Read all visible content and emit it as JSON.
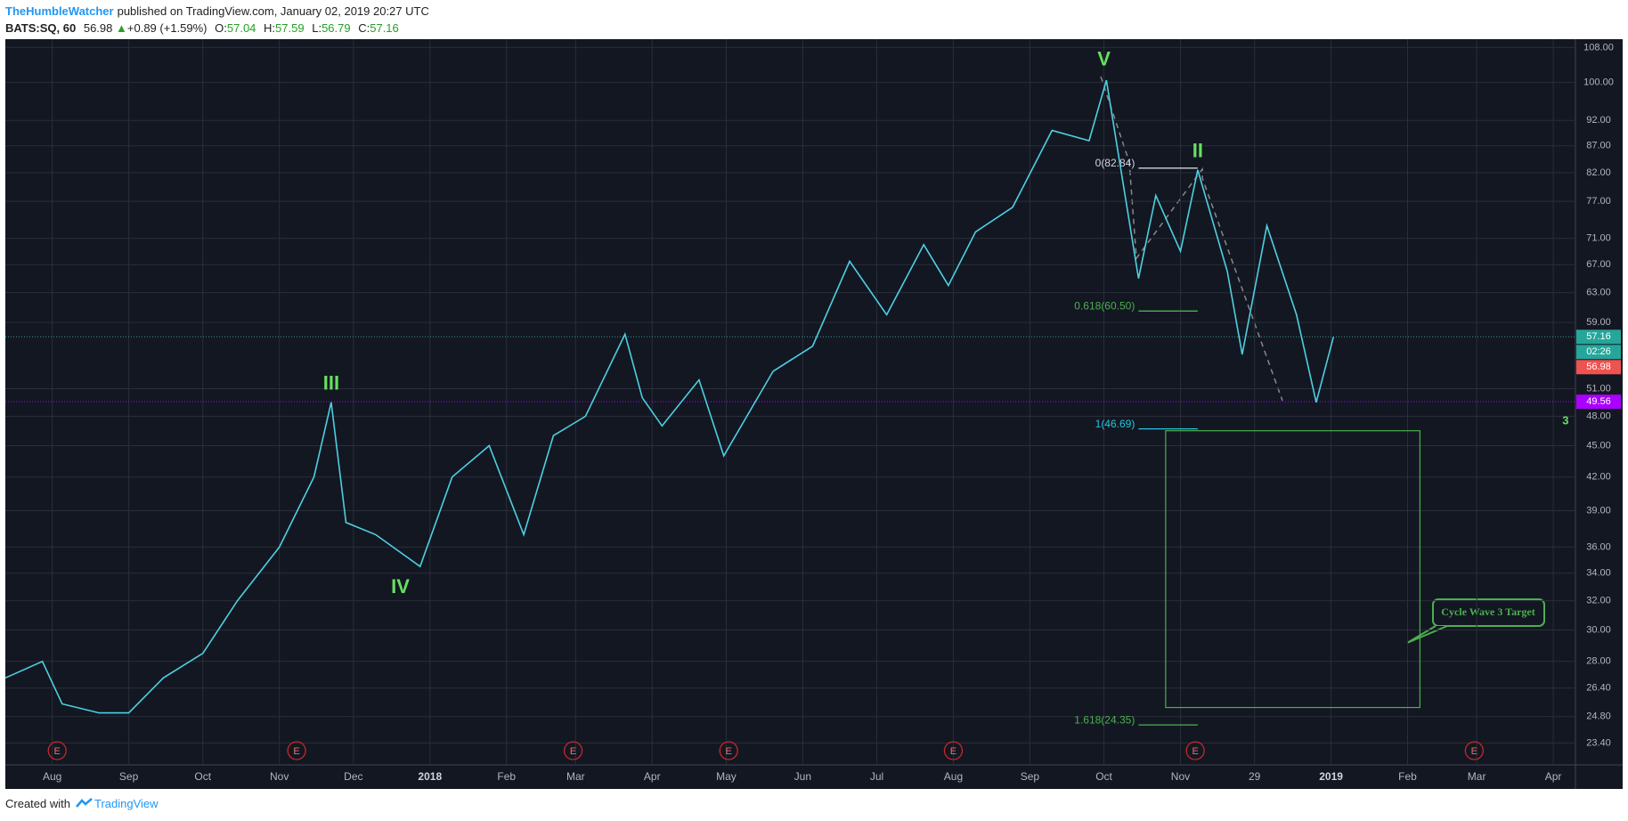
{
  "header": {
    "user": "TheHumbleWatcher",
    "published": "published on TradingView.com, January 02, 2019 20:27 UTC",
    "symbol": "BATS:SQ, 60",
    "last": 56.98,
    "change": "+0.89 (+1.59%)",
    "ohlc": [
      {
        "key": "O:",
        "value": 57.04
      },
      {
        "key": "H:",
        "value": 57.59
      },
      {
        "key": "L:",
        "value": 56.79
      },
      {
        "key": "C:",
        "value": 57.16
      }
    ]
  },
  "chart_data": {
    "type": "line",
    "log_scale": true,
    "grid": true,
    "color": "#4dd0e1",
    "x": [
      "2017-07-13",
      "2017-07-28",
      "2017-08-05",
      "2017-08-20",
      "2017-09-01",
      "2017-09-15",
      "2017-10-01",
      "2017-10-15",
      "2017-11-01",
      "2017-11-15",
      "2017-11-22",
      "2017-11-28",
      "2017-12-10",
      "2017-12-28",
      "2018-01-10",
      "2018-01-25",
      "2018-02-08",
      "2018-02-20",
      "2018-03-05",
      "2018-03-21",
      "2018-03-28",
      "2018-04-05",
      "2018-04-20",
      "2018-04-30",
      "2018-05-20",
      "2018-06-05",
      "2018-06-20",
      "2018-07-05",
      "2018-07-20",
      "2018-07-30",
      "2018-08-10",
      "2018-08-25",
      "2018-09-10",
      "2018-09-25",
      "2018-10-02",
      "2018-10-15",
      "2018-10-22",
      "2018-11-01",
      "2018-11-08",
      "2018-11-20",
      "2018-11-26",
      "2018-12-06",
      "2018-12-18",
      "2018-12-26",
      "2019-01-02"
    ],
    "values": [
      27,
      28,
      25.5,
      25,
      25,
      27,
      28.5,
      32,
      36,
      42,
      49.5,
      38,
      37,
      34.5,
      42,
      45,
      37,
      46,
      48,
      57.5,
      50,
      47,
      52,
      44,
      53,
      56,
      67.5,
      60,
      70,
      64,
      72,
      76,
      90,
      88,
      100.5,
      65,
      78,
      69,
      82.5,
      66,
      55,
      73,
      60,
      49.5,
      57.16
    ],
    "xlim": [
      "2017-07-13",
      "2019-04-10"
    ],
    "xticks": [
      {
        "value": "2017-08-01",
        "label": "Aug"
      },
      {
        "value": "2017-09-01",
        "label": "Sep"
      },
      {
        "value": "2017-10-01",
        "label": "Oct"
      },
      {
        "value": "2017-11-01",
        "label": "Nov"
      },
      {
        "value": "2017-12-01",
        "label": "Dec"
      },
      {
        "value": "2018-01-01",
        "label": "2018"
      },
      {
        "value": "2018-02-01",
        "label": "Feb"
      },
      {
        "value": "2018-03-01",
        "label": "Mar"
      },
      {
        "value": "2018-04-01",
        "label": "Apr"
      },
      {
        "value": "2018-05-01",
        "label": "May"
      },
      {
        "value": "2018-06-01",
        "label": "Jun"
      },
      {
        "value": "2018-07-01",
        "label": "Jul"
      },
      {
        "value": "2018-08-01",
        "label": "Aug"
      },
      {
        "value": "2018-09-01",
        "label": "Sep"
      },
      {
        "value": "2018-10-01",
        "label": "Oct"
      },
      {
        "value": "2018-11-01",
        "label": "Nov"
      },
      {
        "value": "2018-12-01",
        "label": "29"
      },
      {
        "value": "2019-01-01",
        "label": "2019"
      },
      {
        "value": "2019-02-01",
        "label": "Feb"
      },
      {
        "value": "2019-03-01",
        "label": "Mar"
      },
      {
        "value": "2019-04-01",
        "label": "Apr"
      }
    ],
    "ylim": [
      22.3,
      110
    ],
    "yticks": [
      {
        "value": 108,
        "label": "108.00"
      },
      {
        "value": 100,
        "label": "100.00"
      },
      {
        "value": 92,
        "label": "92.00"
      },
      {
        "value": 87,
        "label": "87.00"
      },
      {
        "value": 82,
        "label": "82.00"
      },
      {
        "value": 77,
        "label": "77.00"
      },
      {
        "value": 71,
        "label": "71.00"
      },
      {
        "value": 67,
        "label": "67.00"
      },
      {
        "value": 63,
        "label": "63.00"
      },
      {
        "value": 59,
        "label": "59.00"
      },
      {
        "value": 51,
        "label": "51.00"
      },
      {
        "value": 48,
        "label": "48.00"
      },
      {
        "value": 45,
        "label": "45.00"
      },
      {
        "value": 42,
        "label": "42.00"
      },
      {
        "value": 39,
        "label": "39.00"
      },
      {
        "value": 36,
        "label": "36.00"
      },
      {
        "value": 34,
        "label": "34.00"
      },
      {
        "value": 32,
        "label": "32.00"
      },
      {
        "value": 30,
        "label": "30.00"
      },
      {
        "value": 28,
        "label": "28.00"
      },
      {
        "value": 26.4,
        "label": "26.40"
      },
      {
        "value": 24.8,
        "label": "24.80"
      },
      {
        "value": 23.4,
        "label": "23.40"
      }
    ],
    "price_lines": [
      {
        "value": 57.16,
        "color": "#26a69a"
      },
      {
        "value": 49.56,
        "color": "#aa00ff"
      }
    ],
    "badges": [
      {
        "value": 57.16,
        "color": "#26a69a"
      },
      {
        "value": 56.98,
        "color": "#ef5350"
      },
      {
        "value": 49.56,
        "color": "#aa00ff"
      }
    ],
    "countdown": "02:26",
    "annotations": [
      {
        "text": "V",
        "x": "2018-10-01",
        "y": 105
      },
      {
        "text": "II",
        "x": "2018-11-08",
        "y": 85.8
      },
      {
        "text": "III",
        "x": "2017-11-22",
        "y": 51.5
      },
      {
        "text": "IV",
        "x": "2017-12-20",
        "y": 32.9
      },
      {
        "text": "3",
        "x": "2019-04-06",
        "y": 47.5
      }
    ],
    "fib_levels": [
      {
        "label": "0(82.84)",
        "value": 82.84,
        "color": "#d1d4dc",
        "x": [
          "2018-10-15",
          "2018-11-08"
        ]
      },
      {
        "label": "0.618(60.50)",
        "value": 60.5,
        "color": "#4caf50",
        "x": [
          "2018-10-15",
          "2018-11-08"
        ]
      },
      {
        "label": "1(46.69)",
        "value": 46.69,
        "color": "#26c6da",
        "x": [
          "2018-10-15",
          "2018-11-08"
        ]
      },
      {
        "label": "1.618(24.35)",
        "value": 24.35,
        "color": "#4caf50",
        "x": [
          "2018-10-15",
          "2018-11-08"
        ]
      }
    ],
    "target_box": {
      "x": [
        "2018-10-26",
        "2019-02-06"
      ],
      "y": [
        25.3,
        46.5
      ],
      "color": "#4caf50"
    },
    "callout": "Cycle Wave 3 Target",
    "events": [
      {
        "x": "2017-08-03",
        "label": "E"
      },
      {
        "x": "2017-11-08",
        "label": "E"
      },
      {
        "x": "2018-02-28",
        "label": "E"
      },
      {
        "x": "2018-05-02",
        "label": "E"
      },
      {
        "x": "2018-08-01",
        "label": "E"
      },
      {
        "x": "2018-11-07",
        "label": "E"
      },
      {
        "x": "2019-02-28",
        "label": "E"
      }
    ]
  },
  "footer": {
    "text": "Created with",
    "brand": "TradingView"
  }
}
